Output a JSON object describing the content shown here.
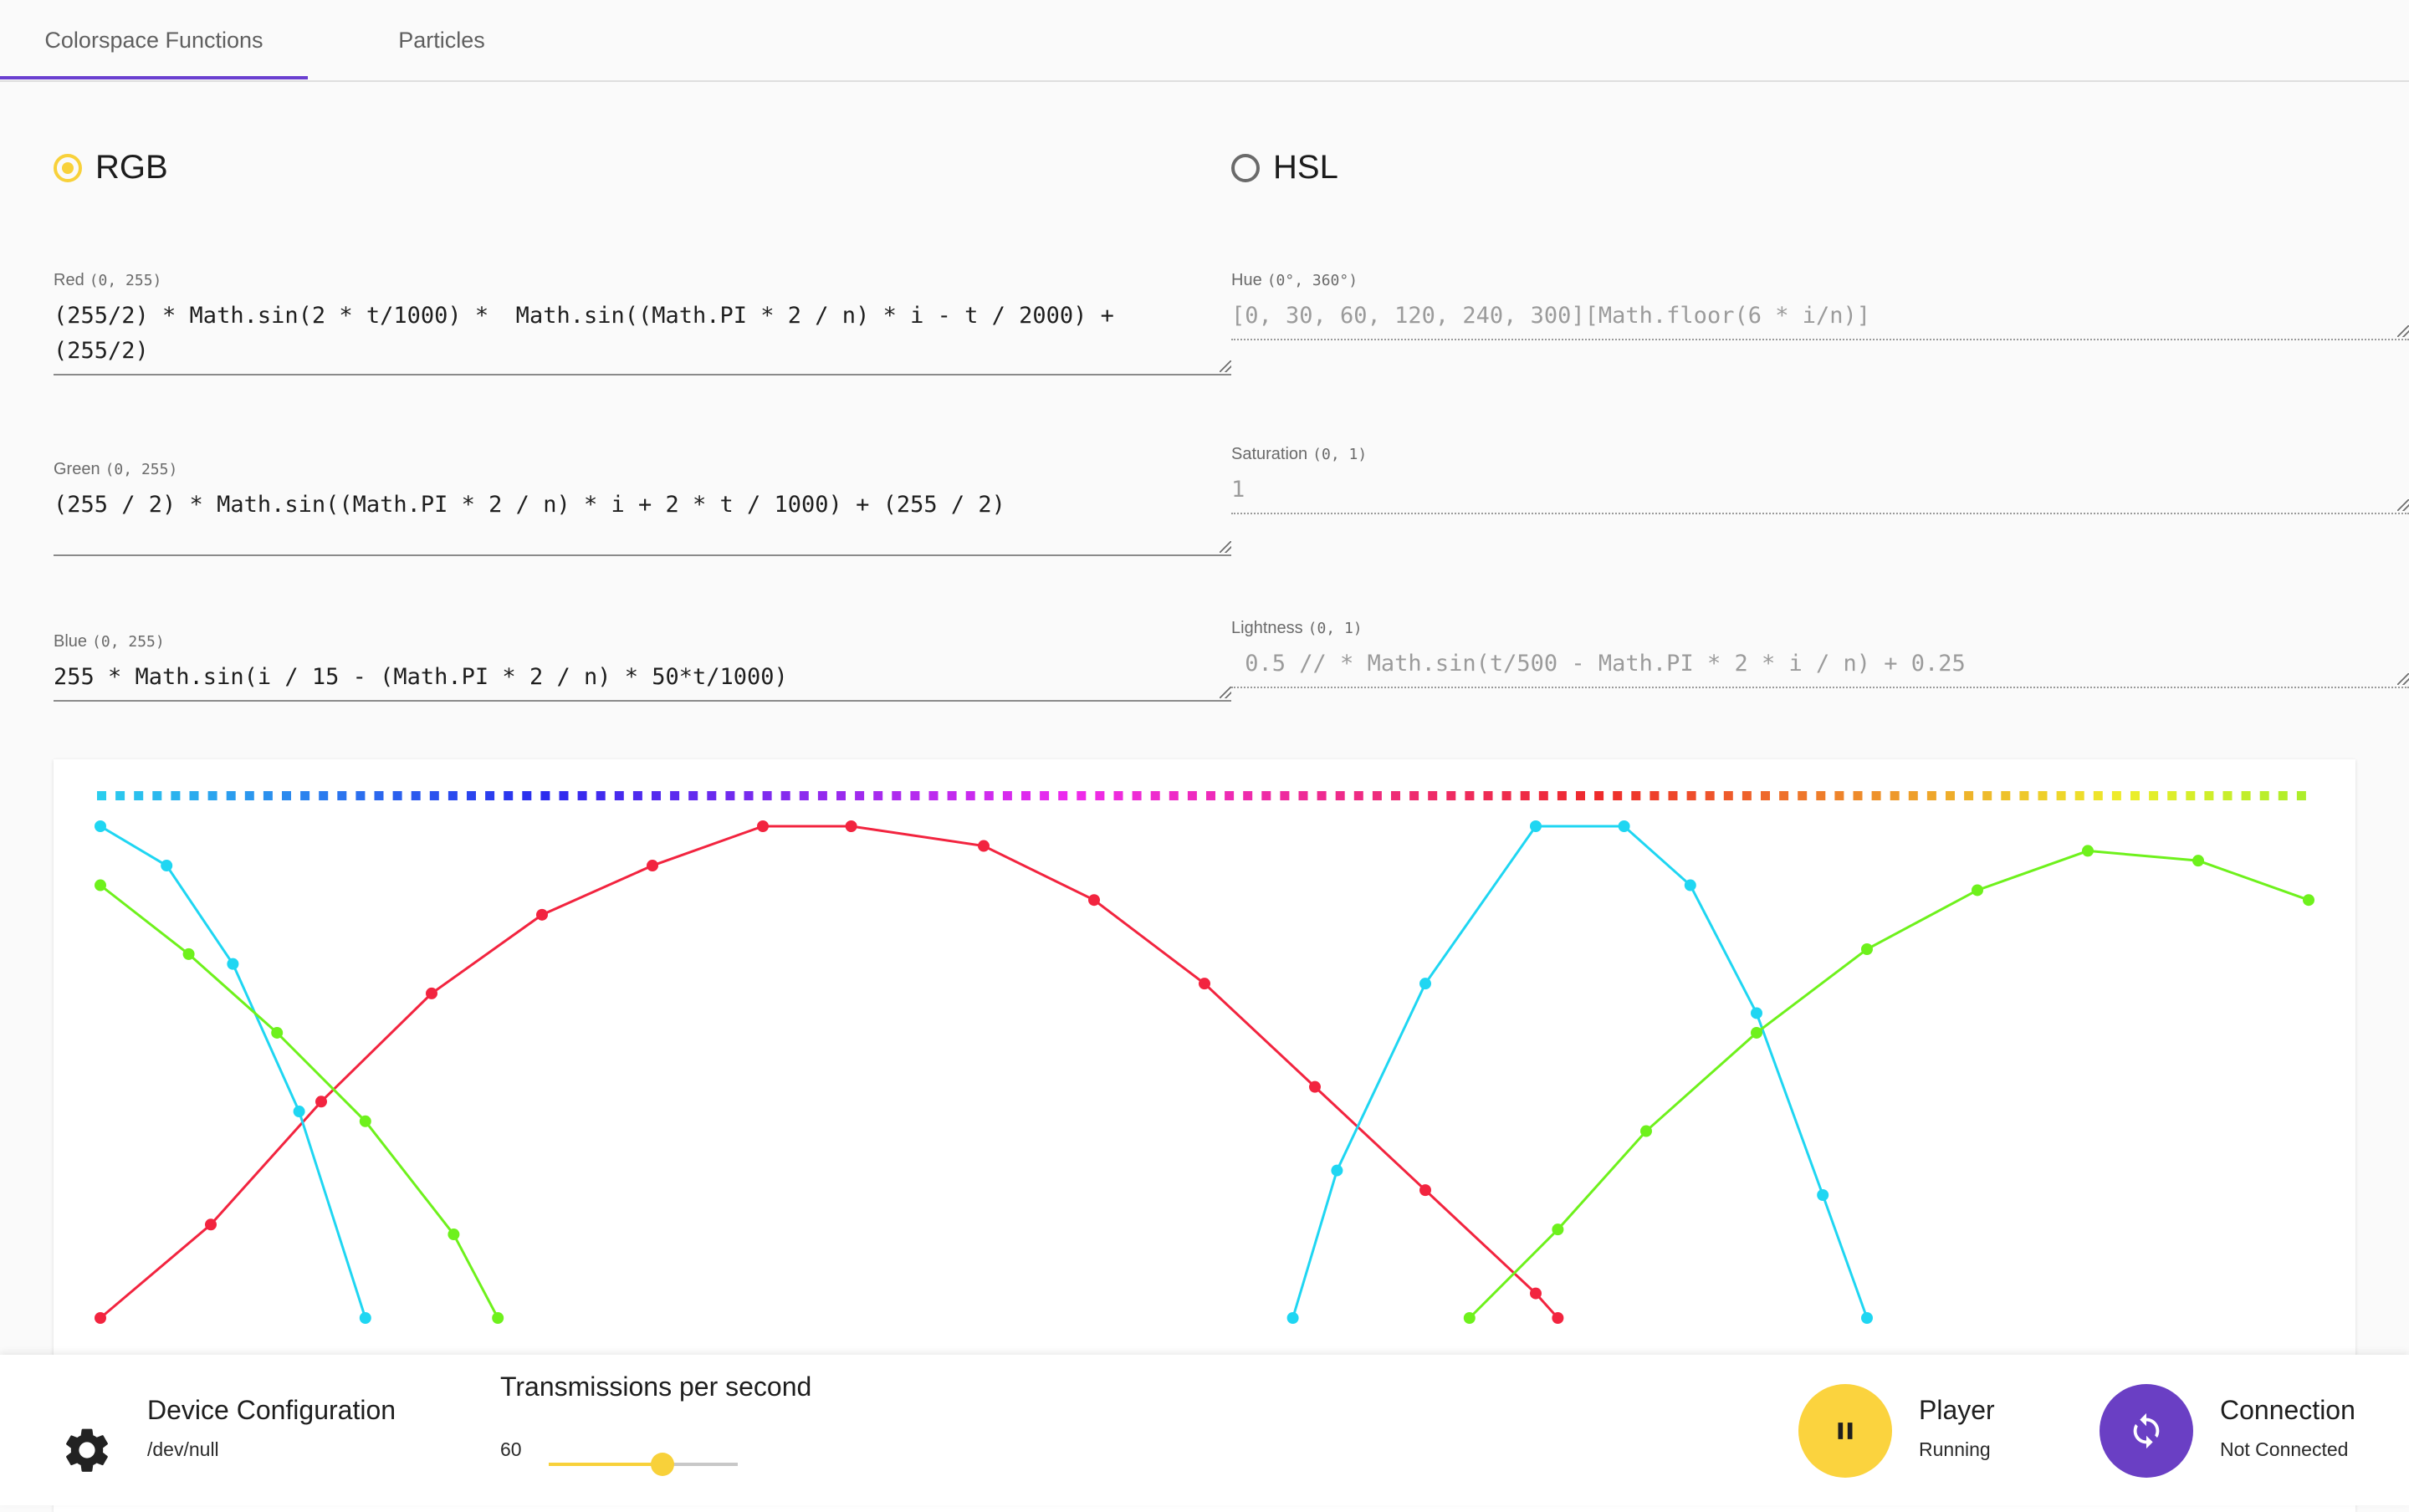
{
  "tabs": {
    "active": "Colorspace Functions",
    "items": [
      "Colorspace Functions",
      "Particles"
    ]
  },
  "rgb": {
    "label": "RGB",
    "selected": true,
    "red": {
      "label": "Red",
      "range": "(0, 255)",
      "value": "(255/2) * Math.sin(2 * t/1000) *  Math.sin((Math.PI * 2 / n) * i - t / 2000) +\n(255/2)"
    },
    "green": {
      "label": "Green",
      "range": "(0, 255)",
      "value": "(255 / 2) * Math.sin((Math.PI * 2 / n) * i + 2 * t / 1000) + (255 / 2)"
    },
    "blue": {
      "label": "Blue",
      "range": "(0, 255)",
      "value": "255 * Math.sin(i / 15 - (Math.PI * 2 / n) * 50*t/1000)"
    }
  },
  "hsl": {
    "label": "HSL",
    "selected": false,
    "hue": {
      "label": "Hue",
      "range": "(0°, 360°)",
      "value": "[0, 30, 60, 120, 240, 300][Math.floor(6 * i/n)]"
    },
    "saturation": {
      "label": "Saturation",
      "range": "(0, 1)",
      "value": "1"
    },
    "lightness": {
      "label": "Lightness",
      "range": "(0, 1)",
      "value": " 0.5 // * Math.sin(t/500 - Math.PI * 2 * i / n) + 0.25"
    }
  },
  "chart_data": {
    "type": "scatter",
    "series": [
      {
        "color": "#f2243f",
        "x": [
          0.0,
          0.05,
          0.1,
          0.15,
          0.2,
          0.25,
          0.3,
          0.34,
          0.4,
          0.45,
          0.5,
          0.55,
          0.6,
          0.65,
          0.66
        ],
        "y": [
          0.0,
          0.19,
          0.44,
          0.66,
          0.82,
          0.92,
          1.0,
          1.0,
          0.96,
          0.85,
          0.68,
          0.47,
          0.26,
          0.05,
          0.0
        ]
      },
      {
        "color": "#1fd6f2",
        "x": [
          0.0,
          0.03,
          0.06,
          0.09,
          0.12,
          0.54,
          0.56,
          0.6,
          0.65,
          0.69,
          0.72,
          0.75,
          0.78,
          0.8
        ],
        "y": [
          1.0,
          0.92,
          0.72,
          0.42,
          0.0,
          0.0,
          0.3,
          0.68,
          1.0,
          1.0,
          0.88,
          0.62,
          0.25,
          0.0
        ]
      },
      {
        "color": "#6ef11c",
        "x": [
          0.0,
          0.04,
          0.08,
          0.12,
          0.16,
          0.18,
          0.62,
          0.66,
          0.7,
          0.75,
          0.8,
          0.85,
          0.9,
          0.95,
          1.0
        ],
        "y": [
          0.88,
          0.74,
          0.58,
          0.4,
          0.17,
          0.0,
          0.0,
          0.18,
          0.38,
          0.58,
          0.75,
          0.87,
          0.95,
          0.93,
          0.85
        ]
      }
    ]
  },
  "bottom": {
    "device": {
      "title": "Device Configuration",
      "subtitle": "/dev/null",
      "icon": "gear-icon"
    },
    "tps": {
      "title": "Transmissions per second",
      "value": "60",
      "fraction": 0.6
    },
    "player": {
      "title": "Player",
      "status": "Running",
      "icon": "pause-icon",
      "color": "#fbd33e"
    },
    "connection": {
      "title": "Connection",
      "status": "Not Connected",
      "icon": "sync-icon",
      "color": "#6a3fc4"
    }
  }
}
